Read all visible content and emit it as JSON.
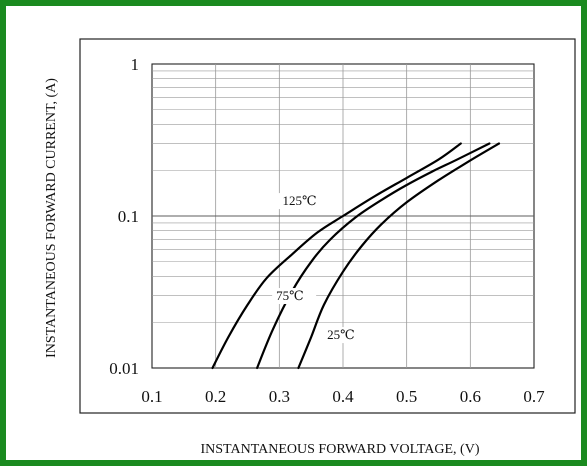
{
  "colors": {
    "frame_border": "#1a8a1f",
    "curve": "#000000",
    "grid": "#9a9a9a",
    "axis": "#222222"
  },
  "chart_data": {
    "type": "line",
    "xlabel": "INSTANTANEOUS FORWARD VOLTAGE, (V)",
    "ylabel": "INSTANTANEOUS FORWARD CURRENT, (A)",
    "xlim": [
      0.1,
      0.7
    ],
    "ylim": [
      0.01,
      1
    ],
    "y_scale": "log",
    "grid": true,
    "x_ticks": [
      "0.1",
      "0.2",
      "0.3",
      "0.4",
      "0.5",
      "0.6",
      "0.7"
    ],
    "y_ticks": [
      "1",
      "0.1",
      "0.01"
    ],
    "series": [
      {
        "name": "125℃",
        "x": [
          0.195,
          0.22,
          0.25,
          0.28,
          0.32,
          0.36,
          0.4,
          0.45,
          0.5,
          0.55,
          0.585
        ],
        "y": [
          0.01,
          0.016,
          0.026,
          0.039,
          0.056,
          0.078,
          0.1,
          0.135,
          0.178,
          0.235,
          0.3
        ]
      },
      {
        "name": "75℃",
        "x": [
          0.265,
          0.29,
          0.32,
          0.35,
          0.38,
          0.42,
          0.46,
          0.5,
          0.54,
          0.58,
          0.63
        ],
        "y": [
          0.01,
          0.018,
          0.032,
          0.05,
          0.07,
          0.098,
          0.127,
          0.16,
          0.196,
          0.236,
          0.3
        ]
      },
      {
        "name": "25℃",
        "x": [
          0.33,
          0.35,
          0.37,
          0.4,
          0.43,
          0.46,
          0.5,
          0.55,
          0.6,
          0.645
        ],
        "y": [
          0.01,
          0.016,
          0.026,
          0.043,
          0.064,
          0.088,
          0.123,
          0.172,
          0.232,
          0.3
        ]
      }
    ]
  }
}
